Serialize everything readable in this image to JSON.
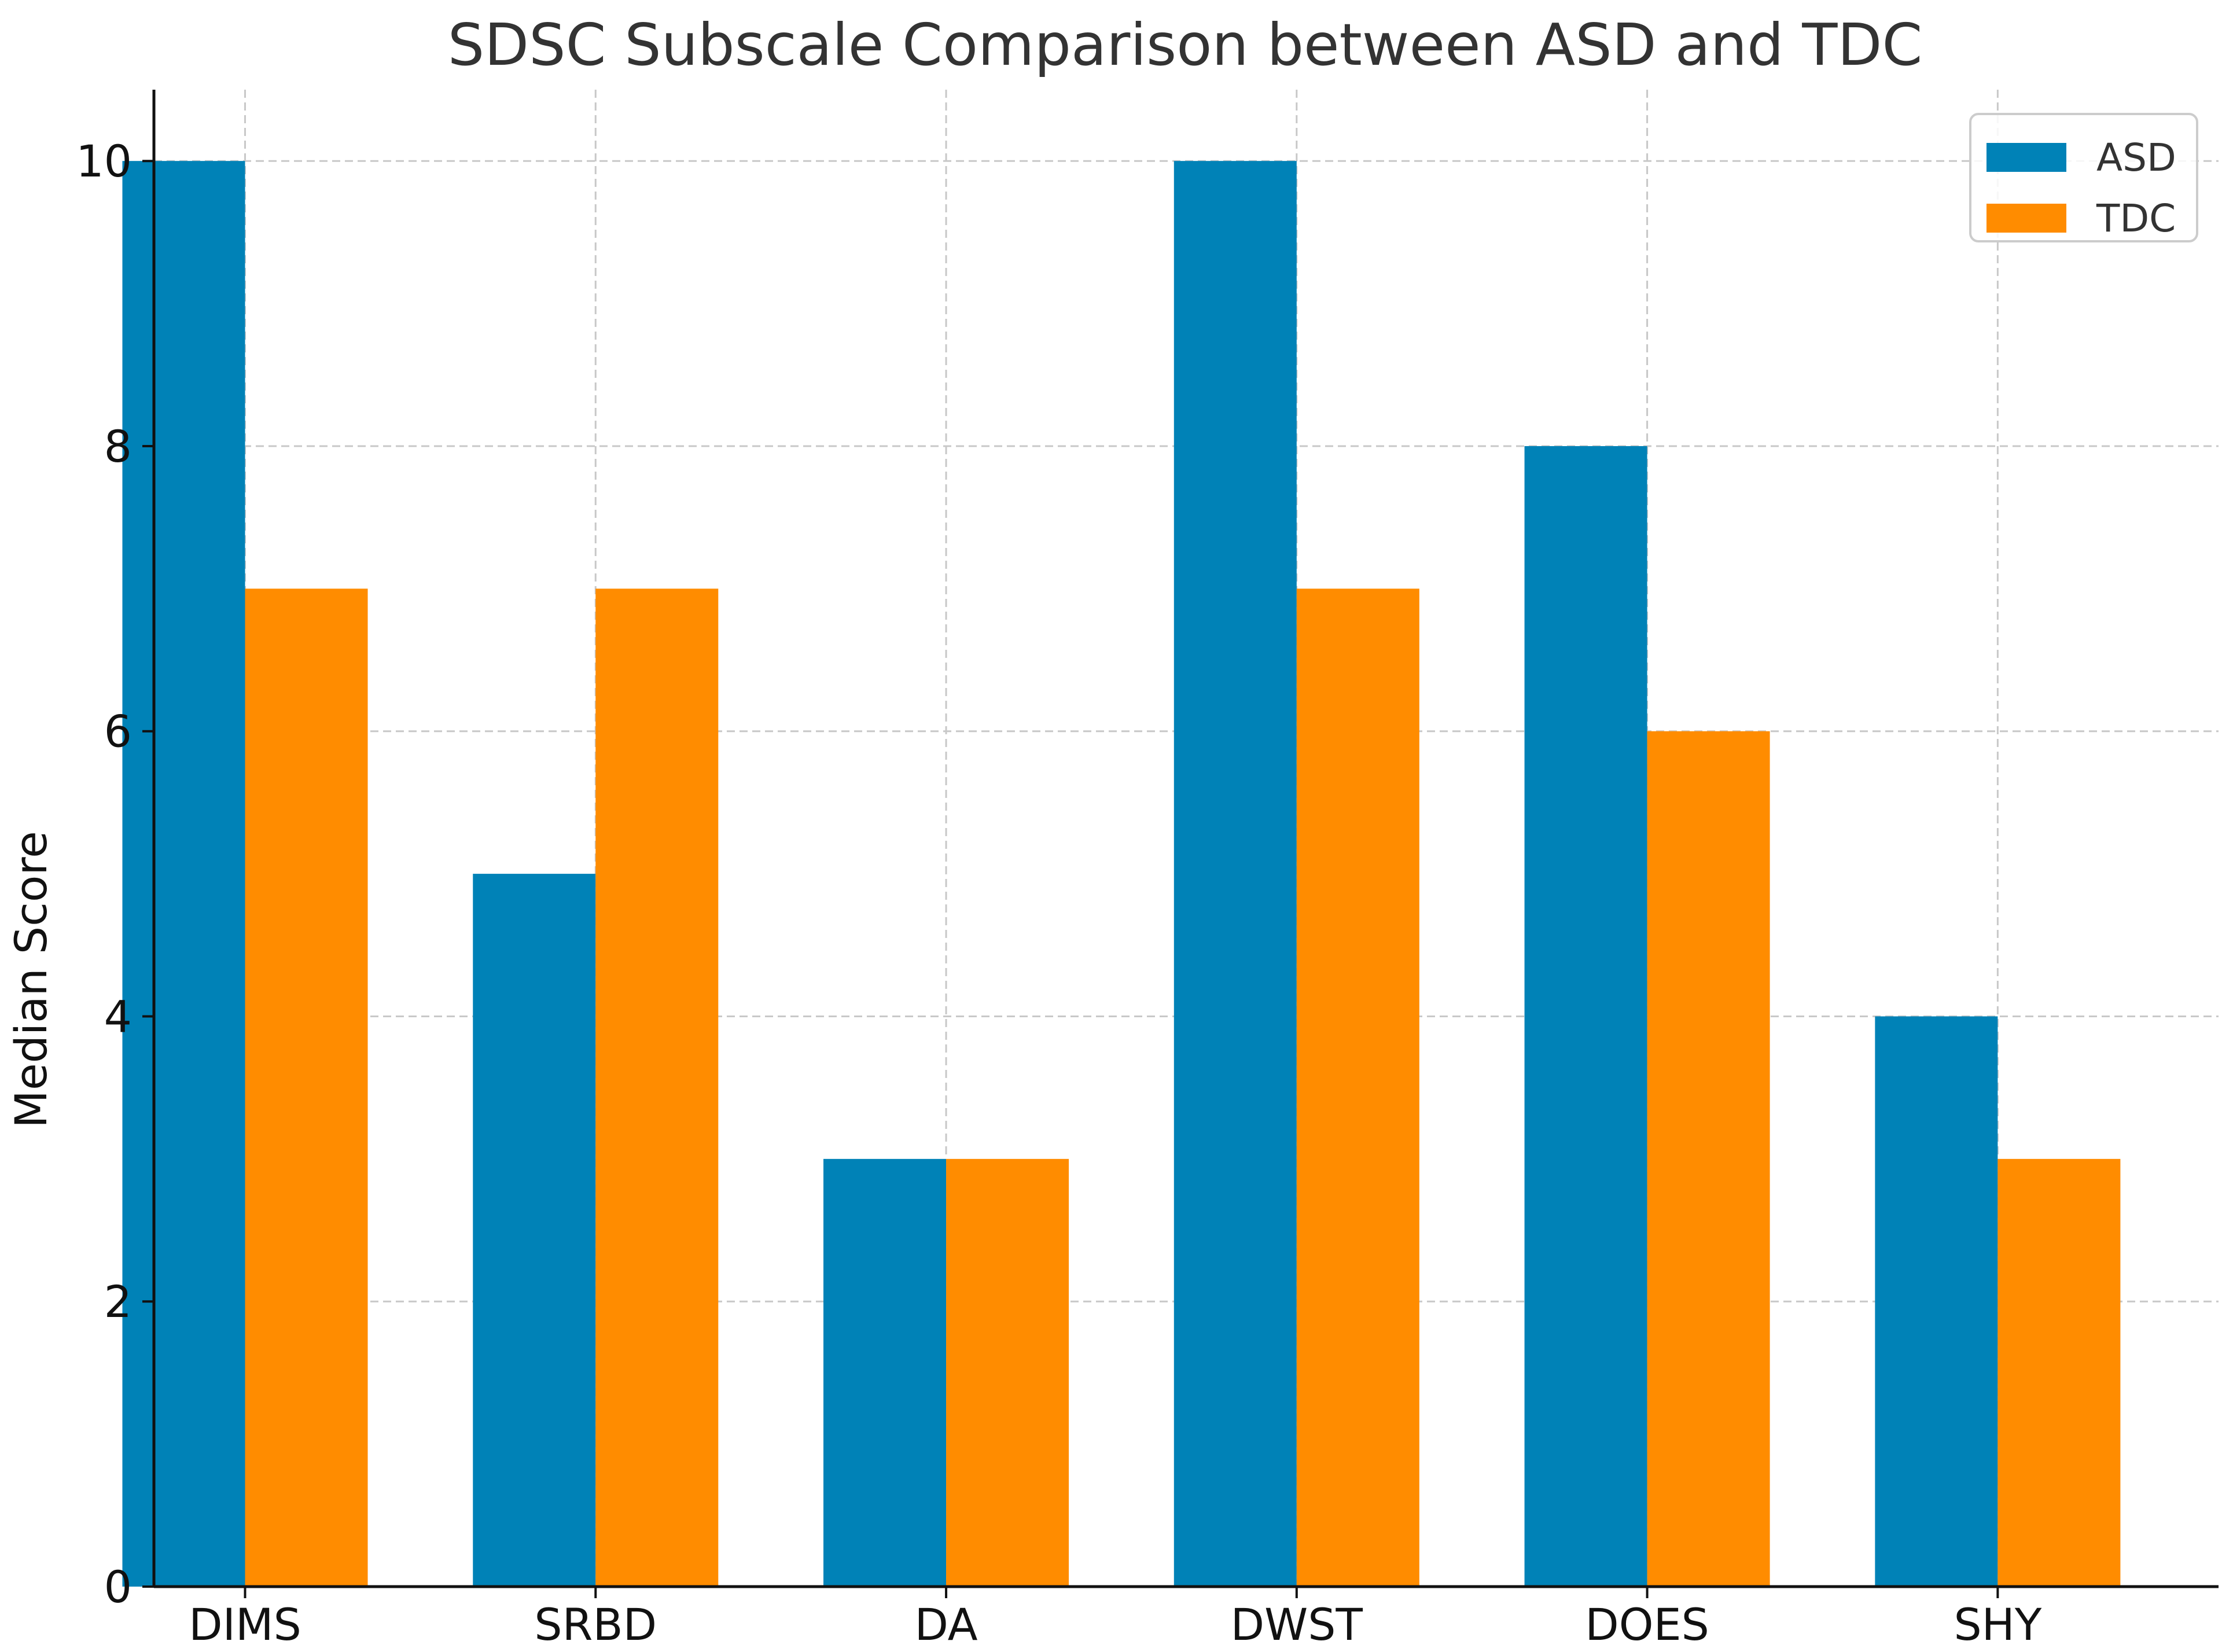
{
  "chart_data": {
    "type": "bar",
    "title": "SDSC Subscale Comparison between ASD and TDC",
    "xlabel": "",
    "ylabel": "Median Score",
    "categories": [
      "DIMS",
      "SRBD",
      "DA",
      "DWST",
      "DOES",
      "SHY"
    ],
    "series": [
      {
        "name": "ASD",
        "color": "#0082b7",
        "values": [
          10,
          5,
          3,
          10,
          8,
          4
        ]
      },
      {
        "name": "TDC",
        "color": "#ff8c00",
        "values": [
          7,
          7,
          3,
          7,
          6,
          3
        ]
      }
    ],
    "ylim": [
      0,
      10.5
    ],
    "yticks": [
      0,
      2,
      4,
      6,
      8,
      10
    ],
    "ytick_labels": [
      "0",
      "2",
      "4",
      "6",
      "8",
      "10"
    ],
    "grid": true,
    "legend_position": "top-right"
  }
}
